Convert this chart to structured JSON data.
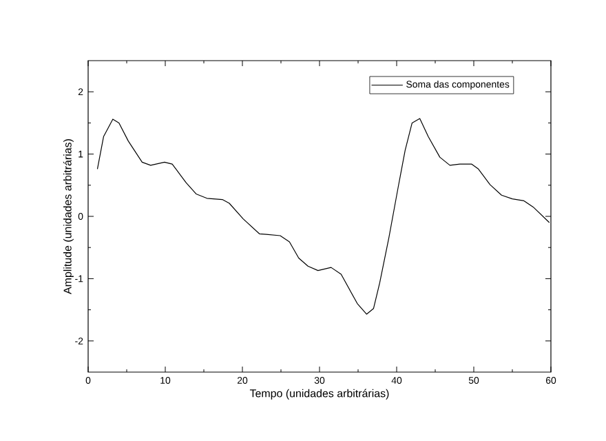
{
  "chart_data": {
    "type": "line",
    "xlabel": "Tempo (unidades arbitrárias)",
    "ylabel": "Amplitude (unidades arbitrárias)",
    "xlim": [
      0,
      60
    ],
    "ylim": [
      -2.5,
      2.5
    ],
    "xticks": [
      0,
      10,
      20,
      30,
      40,
      50,
      60
    ],
    "yticks": [
      -2,
      -1,
      0,
      1,
      2
    ],
    "legend": "top right",
    "marker": "none",
    "line_style": "solid",
    "grid": false,
    "series": [
      {
        "name": "Soma das componentes",
        "color": "#000000",
        "x": [
          1.2,
          2.0,
          3.2,
          4.0,
          5.2,
          7.0,
          8.1,
          9.9,
          10.9,
          12.7,
          14.0,
          15.4,
          17.4,
          18.3,
          20.1,
          22.2,
          23.1,
          24.9,
          26.1,
          27.3,
          28.5,
          29.8,
          31.5,
          32.8,
          34.9,
          36.1,
          37.0,
          37.8,
          39.0,
          40.2,
          41.1,
          42.0,
          43.0,
          44.1,
          45.6,
          46.9,
          48.2,
          49.7,
          50.6,
          52.1,
          53.6,
          55.0,
          56.5,
          57.7,
          59.8
        ],
        "values": [
          0.76,
          1.28,
          1.56,
          1.5,
          1.21,
          0.87,
          0.82,
          0.87,
          0.84,
          0.54,
          0.36,
          0.29,
          0.27,
          0.21,
          -0.04,
          -0.28,
          -0.29,
          -0.31,
          -0.41,
          -0.67,
          -0.8,
          -0.87,
          -0.82,
          -0.93,
          -1.4,
          -1.57,
          -1.48,
          -1.07,
          -0.34,
          0.47,
          1.06,
          1.5,
          1.57,
          1.28,
          0.95,
          0.82,
          0.84,
          0.84,
          0.76,
          0.51,
          0.34,
          0.28,
          0.25,
          0.15,
          -0.1
        ]
      }
    ]
  }
}
